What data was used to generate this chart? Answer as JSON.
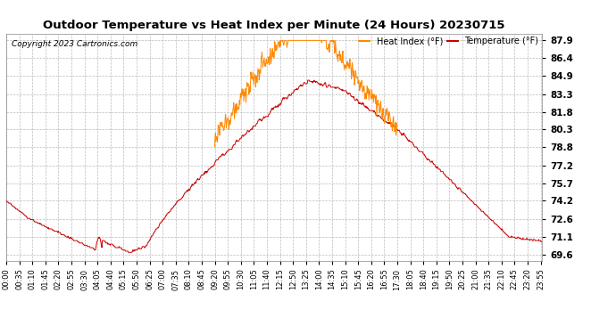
{
  "title": "Outdoor Temperature vs Heat Index per Minute (24 Hours) 20230715",
  "copyright": "Copyright 2023 Cartronics.com",
  "legend_heat_index": "Heat Index (°F)",
  "legend_temperature": "Temperature (°F)",
  "color_temperature": "#cc0000",
  "color_heat_index": "#ff8800",
  "color_background": "#ffffff",
  "color_grid": "#bbbbbb",
  "yticks": [
    69.6,
    71.1,
    72.6,
    74.2,
    75.7,
    77.2,
    78.8,
    80.3,
    81.8,
    83.3,
    84.9,
    86.4,
    87.9
  ],
  "ylim": [
    69.1,
    88.5
  ],
  "total_minutes": 1440,
  "x_tick_labels": [
    "00:00",
    "00:35",
    "01:10",
    "01:45",
    "02:20",
    "02:55",
    "03:30",
    "04:05",
    "04:40",
    "05:15",
    "05:50",
    "06:25",
    "07:00",
    "07:35",
    "08:10",
    "08:45",
    "09:20",
    "09:55",
    "10:30",
    "11:05",
    "11:40",
    "12:15",
    "12:50",
    "13:25",
    "14:00",
    "14:35",
    "15:10",
    "15:45",
    "16:20",
    "16:55",
    "17:30",
    "18:05",
    "18:40",
    "19:15",
    "19:50",
    "20:25",
    "21:00",
    "21:35",
    "22:10",
    "22:45",
    "23:20",
    "23:55"
  ],
  "figsize": [
    6.9,
    3.75
  ],
  "dpi": 100
}
